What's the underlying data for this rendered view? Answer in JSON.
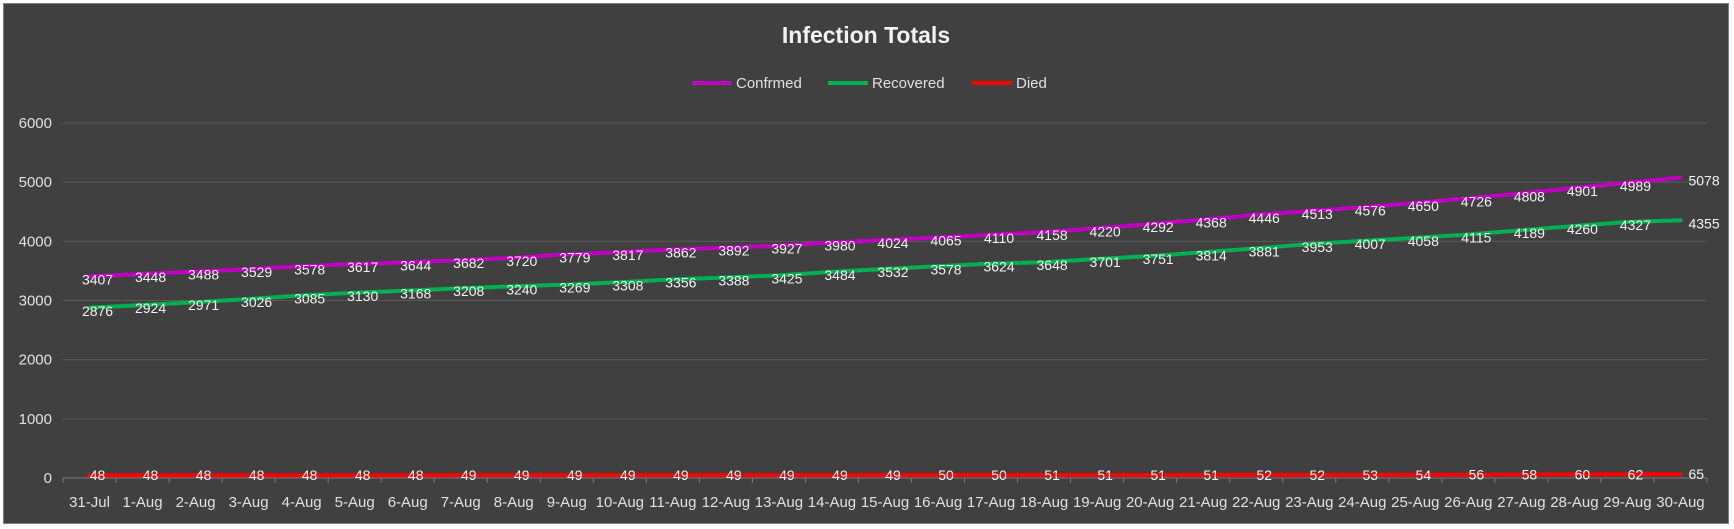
{
  "chart_data": {
    "type": "line",
    "title": "Infection Totals",
    "xlabel": "",
    "ylabel": "",
    "ylim": [
      0,
      6000
    ],
    "yticks": [
      0,
      1000,
      2000,
      3000,
      4000,
      5000,
      6000
    ],
    "grid": true,
    "legend_position": "top",
    "categories": [
      "31-Jul",
      "1-Aug",
      "2-Aug",
      "3-Aug",
      "4-Aug",
      "5-Aug",
      "6-Aug",
      "7-Aug",
      "8-Aug",
      "9-Aug",
      "10-Aug",
      "11-Aug",
      "12-Aug",
      "13-Aug",
      "14-Aug",
      "15-Aug",
      "16-Aug",
      "17-Aug",
      "18-Aug",
      "19-Aug",
      "20-Aug",
      "21-Aug",
      "22-Aug",
      "23-Aug",
      "24-Aug",
      "25-Aug",
      "26-Aug",
      "27-Aug",
      "28-Aug",
      "29-Aug",
      "30-Aug"
    ],
    "series": [
      {
        "name": "Confrmed",
        "color": "#c000c0",
        "values": [
          3407,
          3448,
          3488,
          3529,
          3578,
          3617,
          3644,
          3682,
          3720,
          3779,
          3817,
          3862,
          3892,
          3927,
          3980,
          4024,
          4065,
          4110,
          4158,
          4220,
          4292,
          4368,
          4446,
          4513,
          4576,
          4650,
          4726,
          4808,
          4901,
          4989,
          5078
        ]
      },
      {
        "name": "Recovered",
        "color": "#00b050",
        "values": [
          2876,
          2924,
          2971,
          3026,
          3085,
          3130,
          3168,
          3208,
          3240,
          3269,
          3308,
          3356,
          3388,
          3425,
          3484,
          3532,
          3578,
          3624,
          3648,
          3701,
          3751,
          3814,
          3881,
          3953,
          4007,
          4058,
          4115,
          4189,
          4260,
          4327,
          4355
        ]
      },
      {
        "name": "Died",
        "color": "#ff0000",
        "values": [
          48,
          48,
          48,
          48,
          48,
          48,
          48,
          49,
          49,
          49,
          49,
          49,
          49,
          49,
          49,
          49,
          50,
          50,
          51,
          51,
          51,
          51,
          52,
          52,
          53,
          54,
          56,
          58,
          60,
          62,
          65
        ]
      }
    ]
  }
}
